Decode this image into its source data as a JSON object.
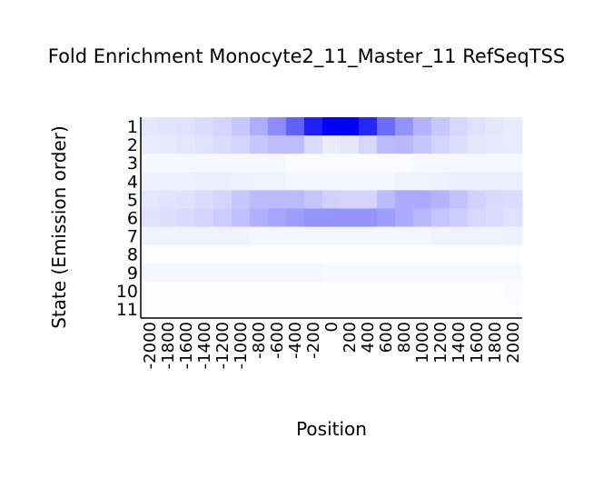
{
  "chart_data": {
    "type": "heatmap",
    "title": "Fold Enrichment Monocyte2_11_Master_11 RefSeqTSS",
    "xlabel": "Position",
    "ylabel": "State (Emission order)",
    "x": [
      "-2000",
      "-1800",
      "-1600",
      "-1400",
      "-1200",
      "-1000",
      "-800",
      "-600",
      "-400",
      "-200",
      "0",
      "200",
      "400",
      "600",
      "800",
      "1000",
      "1200",
      "1400",
      "1600",
      "1800",
      "2000"
    ],
    "y": [
      "1",
      "2",
      "3",
      "4",
      "5",
      "6",
      "7",
      "8",
      "9",
      "10",
      "11"
    ],
    "color_low": "#ffffff",
    "color_high": "#0000ff",
    "values": [
      [
        0.1,
        0.11,
        0.12,
        0.14,
        0.17,
        0.22,
        0.32,
        0.45,
        0.62,
        0.88,
        1.0,
        1.0,
        0.85,
        0.58,
        0.42,
        0.3,
        0.22,
        0.16,
        0.12,
        0.1,
        0.08
      ],
      [
        0.08,
        0.09,
        0.1,
        0.12,
        0.14,
        0.17,
        0.22,
        0.26,
        0.26,
        0.14,
        0.08,
        0.1,
        0.16,
        0.27,
        0.28,
        0.22,
        0.17,
        0.13,
        0.1,
        0.09,
        0.08
      ],
      [
        0.03,
        0.03,
        0.03,
        0.03,
        0.03,
        0.03,
        0.03,
        0.03,
        0.02,
        0.02,
        0.02,
        0.02,
        0.02,
        0.02,
        0.02,
        0.03,
        0.03,
        0.03,
        0.03,
        0.03,
        0.03
      ],
      [
        0.06,
        0.06,
        0.06,
        0.07,
        0.07,
        0.06,
        0.05,
        0.05,
        0.04,
        0.04,
        0.04,
        0.04,
        0.04,
        0.04,
        0.05,
        0.05,
        0.06,
        0.07,
        0.07,
        0.07,
        0.07
      ],
      [
        0.1,
        0.11,
        0.12,
        0.14,
        0.17,
        0.22,
        0.27,
        0.27,
        0.27,
        0.23,
        0.18,
        0.17,
        0.17,
        0.27,
        0.33,
        0.33,
        0.3,
        0.24,
        0.18,
        0.15,
        0.14
      ],
      [
        0.12,
        0.13,
        0.15,
        0.17,
        0.2,
        0.25,
        0.31,
        0.35,
        0.38,
        0.42,
        0.42,
        0.42,
        0.42,
        0.38,
        0.33,
        0.28,
        0.23,
        0.2,
        0.16,
        0.14,
        0.12
      ],
      [
        0.05,
        0.05,
        0.05,
        0.05,
        0.05,
        0.05,
        0.04,
        0.04,
        0.04,
        0.04,
        0.04,
        0.04,
        0.04,
        0.04,
        0.04,
        0.04,
        0.05,
        0.05,
        0.05,
        0.05,
        0.06
      ],
      [
        0.01,
        0.01,
        0.01,
        0.01,
        0.01,
        0.01,
        0.01,
        0.01,
        0.01,
        0.01,
        0.01,
        0.01,
        0.01,
        0.01,
        0.01,
        0.01,
        0.01,
        0.01,
        0.01,
        0.01,
        0.01
      ],
      [
        0.04,
        0.04,
        0.04,
        0.04,
        0.04,
        0.04,
        0.04,
        0.04,
        0.04,
        0.04,
        0.03,
        0.03,
        0.03,
        0.03,
        0.03,
        0.03,
        0.03,
        0.03,
        0.03,
        0.03,
        0.03
      ],
      [
        0.01,
        0.01,
        0.01,
        0.01,
        0.01,
        0.01,
        0.01,
        0.01,
        0.01,
        0.01,
        0.01,
        0.01,
        0.01,
        0.01,
        0.01,
        0.01,
        0.01,
        0.01,
        0.01,
        0.01,
        0.02
      ],
      [
        0.01,
        0.01,
        0.01,
        0.01,
        0.01,
        0.01,
        0.01,
        0.01,
        0.01,
        0.01,
        0.01,
        0.01,
        0.01,
        0.01,
        0.01,
        0.01,
        0.01,
        0.01,
        0.01,
        0.01,
        0.01
      ]
    ],
    "grid": false,
    "legend": "none"
  }
}
